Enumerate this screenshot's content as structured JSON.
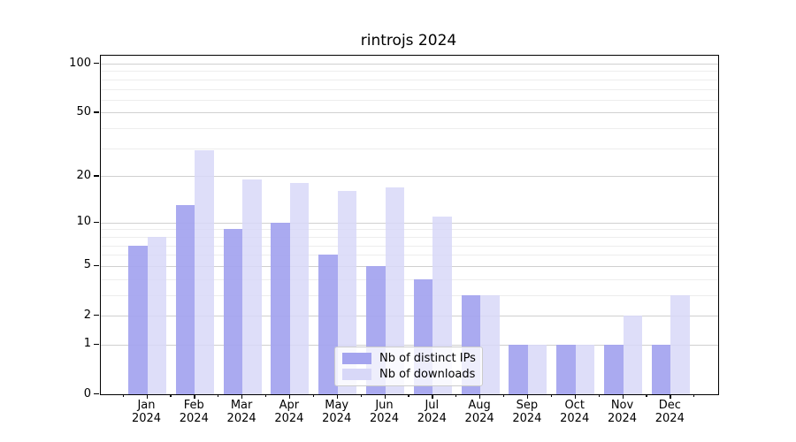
{
  "title": "rintrojs 2024",
  "chart_data": {
    "type": "bar",
    "title": "rintrojs 2024",
    "categories": [
      "Jan 2024",
      "Feb 2024",
      "Mar 2024",
      "Apr 2024",
      "May 2024",
      "Jun 2024",
      "Jul 2024",
      "Aug 2024",
      "Sep 2024",
      "Oct 2024",
      "Nov 2024",
      "Dec 2024"
    ],
    "series": [
      {
        "name": "Nb of distinct IPs",
        "color": "#a4a4ef",
        "values": [
          7,
          13,
          9,
          10,
          6,
          5,
          4,
          3,
          1,
          1,
          1,
          1
        ]
      },
      {
        "name": "Nb of downloads",
        "color": "#d8d8f8",
        "values": [
          8,
          29,
          19,
          18,
          16,
          17,
          11,
          3,
          1,
          1,
          2,
          3
        ]
      }
    ],
    "xlabel": "",
    "ylabel": "",
    "yscale": "log1p",
    "ylim": [
      0,
      112
    ],
    "yticks": [
      100,
      50,
      20,
      10,
      5,
      2,
      1,
      0
    ],
    "minor_gridline_values": [
      3,
      4,
      6,
      7,
      8,
      9,
      30,
      40,
      60,
      70,
      80,
      90
    ],
    "grid": true,
    "legend_position": "lower center"
  },
  "colors": {
    "major_grid": "#d0d0d0",
    "minor_grid": "#ededed",
    "axis": "#000000",
    "background": "#ffffff"
  }
}
